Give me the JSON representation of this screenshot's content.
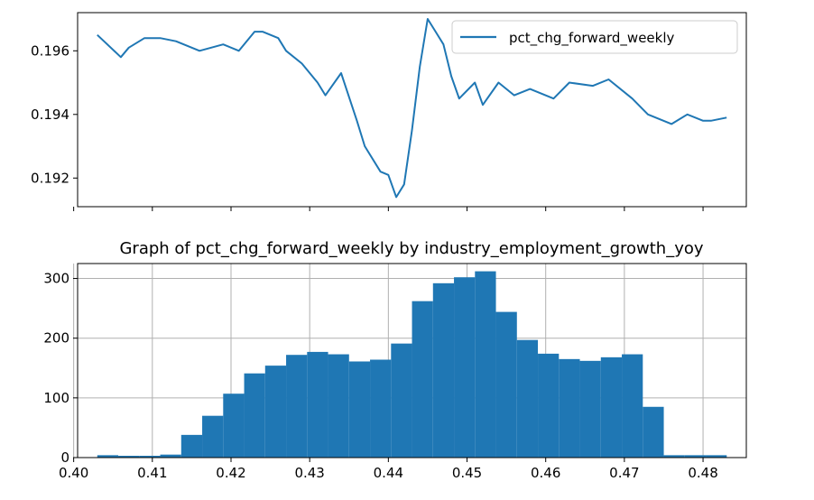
{
  "chart_data": [
    {
      "type": "line",
      "title": "",
      "xlabel": "",
      "ylabel": "",
      "ylim": [
        0.1911,
        0.1972
      ],
      "yticks": [
        0.192,
        0.194,
        0.196
      ],
      "ytick_labels": [
        "0.192",
        "0.194",
        "0.196"
      ],
      "xticks_shown": 9,
      "grid": false,
      "legend": "top-right",
      "series": [
        {
          "name": "pct_chg_forward_weekly",
          "color": "#1f77b4",
          "x": [
            0.403,
            0.406,
            0.407,
            0.409,
            0.411,
            0.413,
            0.416,
            0.419,
            0.421,
            0.423,
            0.424,
            0.426,
            0.427,
            0.429,
            0.431,
            0.432,
            0.434,
            0.436,
            0.437,
            0.439,
            0.44,
            0.441,
            0.442,
            0.443,
            0.444,
            0.445,
            0.446,
            0.447,
            0.448,
            0.449,
            0.451,
            0.452,
            0.454,
            0.456,
            0.458,
            0.461,
            0.463,
            0.466,
            0.468,
            0.471,
            0.473,
            0.476,
            0.478,
            0.48,
            0.481,
            0.483
          ],
          "values": [
            0.1965,
            0.1958,
            0.1961,
            0.1964,
            0.1964,
            0.1963,
            0.196,
            0.1962,
            0.196,
            0.1966,
            0.1966,
            0.1964,
            0.196,
            0.1956,
            0.195,
            0.1946,
            0.1953,
            0.1938,
            0.193,
            0.1922,
            0.1921,
            0.1914,
            0.1918,
            0.1935,
            0.1955,
            0.197,
            0.1966,
            0.1962,
            0.1952,
            0.1945,
            0.195,
            0.1943,
            0.195,
            0.1946,
            0.1948,
            0.1945,
            0.195,
            0.1949,
            0.1951,
            0.1945,
            0.194,
            0.1937,
            0.194,
            0.1938,
            0.1938,
            0.1939
          ]
        }
      ]
    },
    {
      "type": "bar",
      "title": "Graph of pct_chg_forward_weekly by industry_employment_growth_yoy",
      "xlabel": "",
      "ylabel": "",
      "xlim": [
        0.4005,
        0.4855
      ],
      "ylim": [
        0,
        325
      ],
      "xticks": [
        0.4,
        0.41,
        0.42,
        0.43,
        0.44,
        0.45,
        0.46,
        0.47,
        0.48
      ],
      "xtick_labels": [
        "0.40",
        "0.41",
        "0.42",
        "0.43",
        "0.44",
        "0.45",
        "0.46",
        "0.47",
        "0.48"
      ],
      "yticks": [
        0,
        100,
        200,
        300
      ],
      "ytick_labels": [
        "0",
        "100",
        "200",
        "300"
      ],
      "grid": true,
      "bin_start": 0.403,
      "bin_width": 0.002667,
      "values": [
        4,
        3,
        3,
        5,
        38,
        70,
        107,
        141,
        154,
        172,
        177,
        173,
        161,
        164,
        191,
        262,
        292,
        302,
        312,
        244,
        197,
        174,
        165,
        162,
        168,
        173,
        85,
        4,
        4,
        4
      ],
      "color": "#1f77b4"
    }
  ]
}
